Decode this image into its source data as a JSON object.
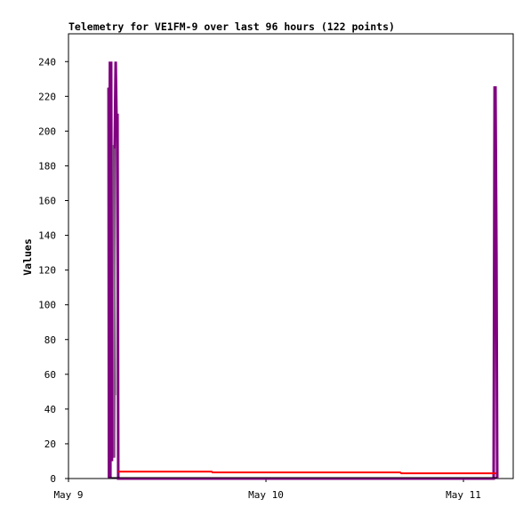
{
  "chart_data": {
    "type": "line",
    "title": "Telemetry for VE1FM-9 over last 96 hours (122 points)",
    "ylabel": "Values",
    "xlim": [
      0,
      2.252
    ],
    "xticks": [
      {
        "value": 0,
        "label": "May 9"
      },
      {
        "value": 1,
        "label": "May 10"
      },
      {
        "value": 2,
        "label": "May 11"
      }
    ],
    "ylim": [
      0,
      256
    ],
    "yticks": [
      0,
      20,
      40,
      60,
      80,
      100,
      120,
      140,
      160,
      180,
      200,
      220,
      240
    ],
    "grid": false,
    "series": [
      {
        "color": "#800080",
        "width": 3,
        "x": [
          0.203,
          0.205,
          0.207,
          0.21,
          0.212,
          0.216,
          0.22,
          0.225,
          0.23,
          0.234,
          0.239,
          0.243,
          0.248,
          0.252,
          2.153,
          2.158,
          2.162,
          2.167,
          2.171
        ],
        "values": [
          225,
          0,
          160,
          240,
          0,
          240,
          10,
          192,
          12,
          190,
          240,
          208,
          210,
          0,
          0,
          225,
          225,
          128,
          0
        ]
      },
      {
        "color": "#808080",
        "width": 1,
        "x": [
          0.225,
          0.23,
          0.234,
          0.239
        ],
        "values": [
          192,
          12,
          190,
          48
        ]
      },
      {
        "color": "#ff0000",
        "width": 2,
        "x": [
          0.252,
          0.725,
          0.73,
          1.68,
          1.685,
          2.167
        ],
        "values": [
          4,
          4,
          3.5,
          3.5,
          3,
          3
        ]
      },
      {
        "color": "#000000",
        "width": 1,
        "x": [
          0.203,
          2.171
        ],
        "values": [
          0.5,
          0.5
        ]
      }
    ]
  }
}
